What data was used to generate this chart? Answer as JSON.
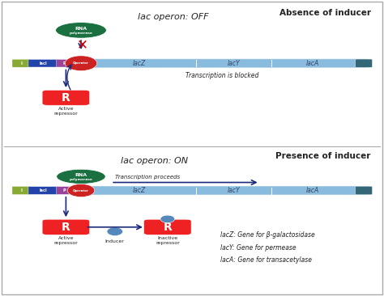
{
  "bg_top": "#b8e4f0",
  "bg_bottom": "#f0f0c0",
  "border_color": "#aaaaaa",
  "title_top": "Absence of inducer",
  "title_bottom": "Presence of inducer",
  "operon_label_top": "lac operon: OFF",
  "operon_label_bottom": "lac operon: ON",
  "dna_color": "#88bbdd",
  "dna_end_color": "#336677",
  "gene_I_color": "#88aa33",
  "gene_lacI_color": "#2244aa",
  "gene_P_color": "#994499",
  "gene_Op_color": "#cc2222",
  "lacZ_label": "lacZ",
  "lacY_label": "lacY",
  "lacA_label": "lacA",
  "rna_pol_color": "#1a7040",
  "repressor_color": "#ee2222",
  "inducer_color": "#5588bb",
  "arrow_color": "#1a2a7a",
  "transcription_blocked": "Transcription is blocked",
  "transcription_proceeds": "Transcription proceeds",
  "active_repressor": "Active\nrepressor",
  "inducer_label": "Inducer",
  "inactive_repressor": "Inactive\nrepressor",
  "legend_lacZ": "lacZ: Gene for β-galactosidase",
  "legend_lacY": "lacY: Gene for permease",
  "legend_lacA": "lacA: Gene for transacetylase",
  "font_color_dark": "#222222",
  "italic_color": "#334466",
  "fig_width": 4.74,
  "fig_height": 3.66,
  "dpi": 100
}
